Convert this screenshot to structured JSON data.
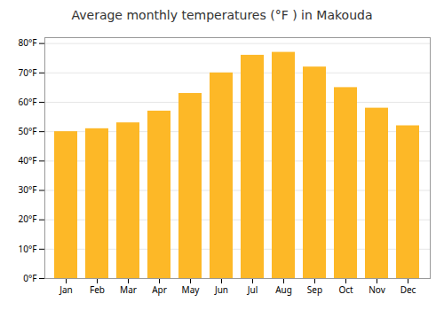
{
  "chart_data": {
    "type": "bar",
    "title": "Average monthly temperatures (°F ) in Makouda",
    "categories": [
      "Jan",
      "Feb",
      "Mar",
      "Apr",
      "May",
      "Jun",
      "Jul",
      "Aug",
      "Sep",
      "Oct",
      "Nov",
      "Dec"
    ],
    "values": [
      50,
      51,
      53,
      57,
      63,
      70,
      76,
      77,
      72,
      65,
      58,
      52
    ],
    "color": "#FDB827",
    "ylim": [
      0,
      82
    ],
    "yticks": [
      {
        "value": 0,
        "label": "0°F"
      },
      {
        "value": 10,
        "label": "10°F"
      },
      {
        "value": 20,
        "label": "20°F"
      },
      {
        "value": 30,
        "label": "30°F"
      },
      {
        "value": 40,
        "label": "40°F"
      },
      {
        "value": 50,
        "label": "50°F"
      },
      {
        "value": 60,
        "label": "60°F"
      },
      {
        "value": 70,
        "label": "70°F"
      },
      {
        "value": 80,
        "label": "80°F"
      }
    ],
    "grid": true
  }
}
